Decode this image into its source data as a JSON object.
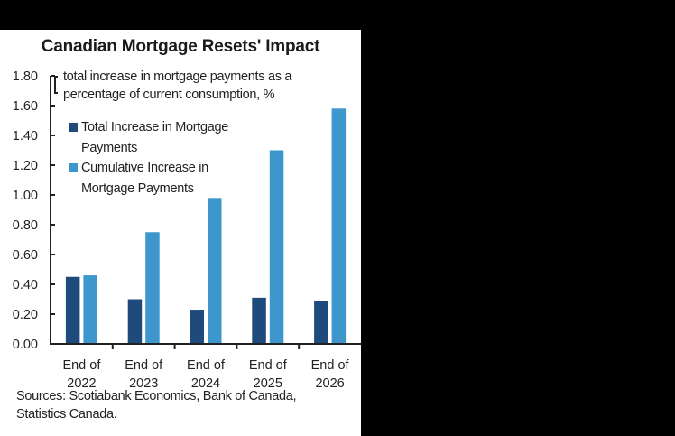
{
  "title": "Canadian Mortgage Resets' Impact",
  "y_axis_note_line1": "total increase in mortgage payments as a",
  "y_axis_note_line2": "percentage of current consumption, %",
  "legend": [
    {
      "label_line1": "Total Increase in Mortgage",
      "label_line2": "Payments",
      "color": "#1f4a7c"
    },
    {
      "label_line1": "Cumulative Increase in",
      "label_line2": "Mortgage Payments",
      "color": "#3d97cc"
    }
  ],
  "sources_line1": "Sources: Scotiabank Economics, Bank of Canada,",
  "sources_line2": "Statistics Canada.",
  "chart_data": {
    "type": "bar",
    "title": "Canadian Mortgage Resets' Impact",
    "subtitle": "total increase in mortgage payments as a percentage of current consumption, %",
    "xlabel": "",
    "ylabel": "total increase in mortgage payments as a percentage of current consumption, %",
    "categories": [
      "End of 2022",
      "End of 2023",
      "End of 2024",
      "End of 2025",
      "End of 2026"
    ],
    "category_lines": [
      [
        "End of",
        "2022"
      ],
      [
        "End of",
        "2023"
      ],
      [
        "End of",
        "2024"
      ],
      [
        "End of",
        "2025"
      ],
      [
        "End of",
        "2026"
      ]
    ],
    "series": [
      {
        "name": "Total Increase in Mortgage Payments",
        "color": "#1f4a7c",
        "values": [
          0.45,
          0.3,
          0.23,
          0.31,
          0.29
        ]
      },
      {
        "name": "Cumulative Increase in Mortgage Payments",
        "color": "#3d97cc",
        "values": [
          0.46,
          0.75,
          0.98,
          1.3,
          1.58
        ]
      }
    ],
    "ylim": [
      0,
      1.8
    ],
    "yticks": [
      "0.00",
      "0.20",
      "0.40",
      "0.60",
      "0.80",
      "1.00",
      "1.20",
      "1.40",
      "1.60",
      "1.80"
    ],
    "grid": false,
    "legend_position": "upper left inside"
  }
}
